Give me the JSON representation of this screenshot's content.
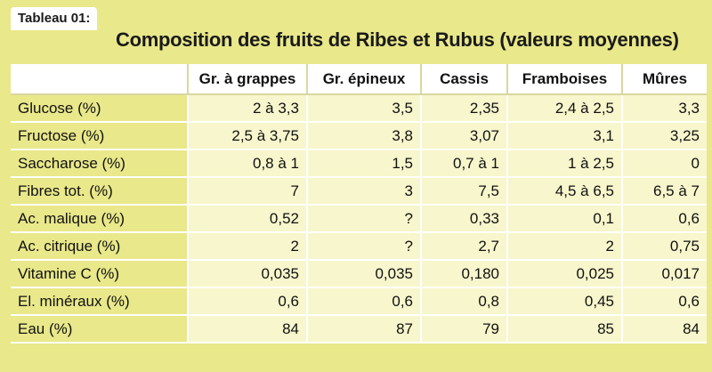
{
  "tag": "Tableau 01:",
  "title": "Composition des fruits de Ribes et Rubus (valeurs moyennes)",
  "columns": [
    "Gr. à grappes",
    "Gr. épineux",
    "Cassis",
    "Framboises",
    "Mûres"
  ],
  "rows": [
    {
      "label": "Glucose (%)",
      "values": [
        "2 à 3,3",
        "3,5",
        "2,35",
        "2,4 à 2,5",
        "3,3"
      ]
    },
    {
      "label": "Fructose (%)",
      "values": [
        "2,5 à 3,75",
        "3,8",
        "3,07",
        "3,1",
        "3,25"
      ]
    },
    {
      "label": "Saccharose (%)",
      "values": [
        "0,8 à 1",
        "1,5",
        "0,7 à 1",
        "1 à 2,5",
        "0"
      ]
    },
    {
      "label": "Fibres tot. (%)",
      "values": [
        "7",
        "3",
        "7,5",
        "4,5 à 6,5",
        "6,5 à 7"
      ]
    },
    {
      "label": "Ac. malique (%)",
      "values": [
        "0,52",
        "?",
        "0,33",
        "0,1",
        "0,6"
      ]
    },
    {
      "label": "Ac. citrique (%)",
      "values": [
        "2",
        "?",
        "2,7",
        "2",
        "0,75"
      ]
    },
    {
      "label": "Vitamine C (%)",
      "values": [
        "0,035",
        "0,035",
        "0,180",
        "0,025",
        "0,017"
      ]
    },
    {
      "label": "El. minéraux (%)",
      "values": [
        "0,6",
        "0,6",
        "0,8",
        "0,45",
        "0,6"
      ]
    },
    {
      "label": "Eau (%)",
      "values": [
        "84",
        "87",
        "79",
        "85",
        "84"
      ]
    }
  ]
}
